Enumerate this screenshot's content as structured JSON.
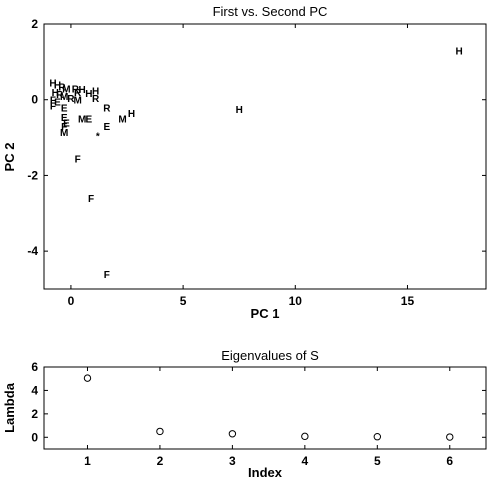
{
  "chart_data": [
    {
      "type": "scatter",
      "title": "First vs. Second PC",
      "xlabel": "PC 1",
      "ylabel": "PC 2",
      "xlim": [
        -1.2,
        18.5
      ],
      "ylim": [
        -5,
        2
      ],
      "xticks": [
        0,
        5,
        10,
        15
      ],
      "yticks": [
        -4,
        -2,
        0,
        2
      ],
      "grid": false,
      "points": [
        {
          "x": -0.8,
          "y": 0.45,
          "label": "H"
        },
        {
          "x": -0.6,
          "y": 0.4,
          "label": "H"
        },
        {
          "x": -0.4,
          "y": 0.35,
          "label": "R"
        },
        {
          "x": -0.2,
          "y": 0.3,
          "label": "M"
        },
        {
          "x": 0.2,
          "y": 0.3,
          "label": "R"
        },
        {
          "x": 0.5,
          "y": 0.28,
          "label": "H"
        },
        {
          "x": -0.7,
          "y": 0.2,
          "label": "H"
        },
        {
          "x": -0.5,
          "y": 0.15,
          "label": "R"
        },
        {
          "x": -0.3,
          "y": 0.1,
          "label": "M"
        },
        {
          "x": 0.0,
          "y": 0.05,
          "label": "R"
        },
        {
          "x": -0.8,
          "y": 0.0,
          "label": "F"
        },
        {
          "x": -0.6,
          "y": -0.05,
          "label": "E"
        },
        {
          "x": 0.3,
          "y": 0.2,
          "label": "R"
        },
        {
          "x": 0.8,
          "y": 0.18,
          "label": "H"
        },
        {
          "x": 1.1,
          "y": 0.25,
          "label": "H"
        },
        {
          "x": 1.1,
          "y": 0.05,
          "label": "R"
        },
        {
          "x": 0.3,
          "y": 0.0,
          "label": "M"
        },
        {
          "x": -0.8,
          "y": -0.15,
          "label": "F"
        },
        {
          "x": -0.3,
          "y": -0.2,
          "label": "E"
        },
        {
          "x": 1.6,
          "y": -0.2,
          "label": "R"
        },
        {
          "x": 7.5,
          "y": -0.25,
          "label": "H"
        },
        {
          "x": 17.3,
          "y": 1.3,
          "label": "H"
        },
        {
          "x": 2.7,
          "y": -0.35,
          "label": "H"
        },
        {
          "x": 2.3,
          "y": -0.5,
          "label": "M"
        },
        {
          "x": -0.3,
          "y": -0.45,
          "label": "E"
        },
        {
          "x": 0.5,
          "y": -0.5,
          "label": "M"
        },
        {
          "x": 0.8,
          "y": -0.5,
          "label": "E"
        },
        {
          "x": -0.3,
          "y": -0.7,
          "label": "F"
        },
        {
          "x": -0.2,
          "y": -0.6,
          "label": "E"
        },
        {
          "x": 1.6,
          "y": -0.7,
          "label": "E"
        },
        {
          "x": -0.3,
          "y": -0.85,
          "label": "M"
        },
        {
          "x": 1.2,
          "y": -0.95,
          "label": "*"
        },
        {
          "x": 0.3,
          "y": -1.55,
          "label": "F"
        },
        {
          "x": 0.9,
          "y": -2.6,
          "label": "F"
        },
        {
          "x": 1.6,
          "y": -4.6,
          "label": "F"
        }
      ]
    },
    {
      "type": "scatter",
      "title": "Eigenvalues of S",
      "xlabel": "Index",
      "ylabel": "Lambda",
      "xlim": [
        0.4,
        6.5
      ],
      "ylim": [
        -1,
        6
      ],
      "xticks": [
        1,
        2,
        3,
        4,
        5,
        6
      ],
      "yticks": [
        0,
        2,
        4,
        6
      ],
      "grid": false,
      "marker": "circle",
      "x": [
        1,
        2,
        3,
        4,
        5,
        6
      ],
      "y": [
        5.05,
        0.5,
        0.3,
        0.08,
        0.05,
        0.02
      ]
    }
  ]
}
